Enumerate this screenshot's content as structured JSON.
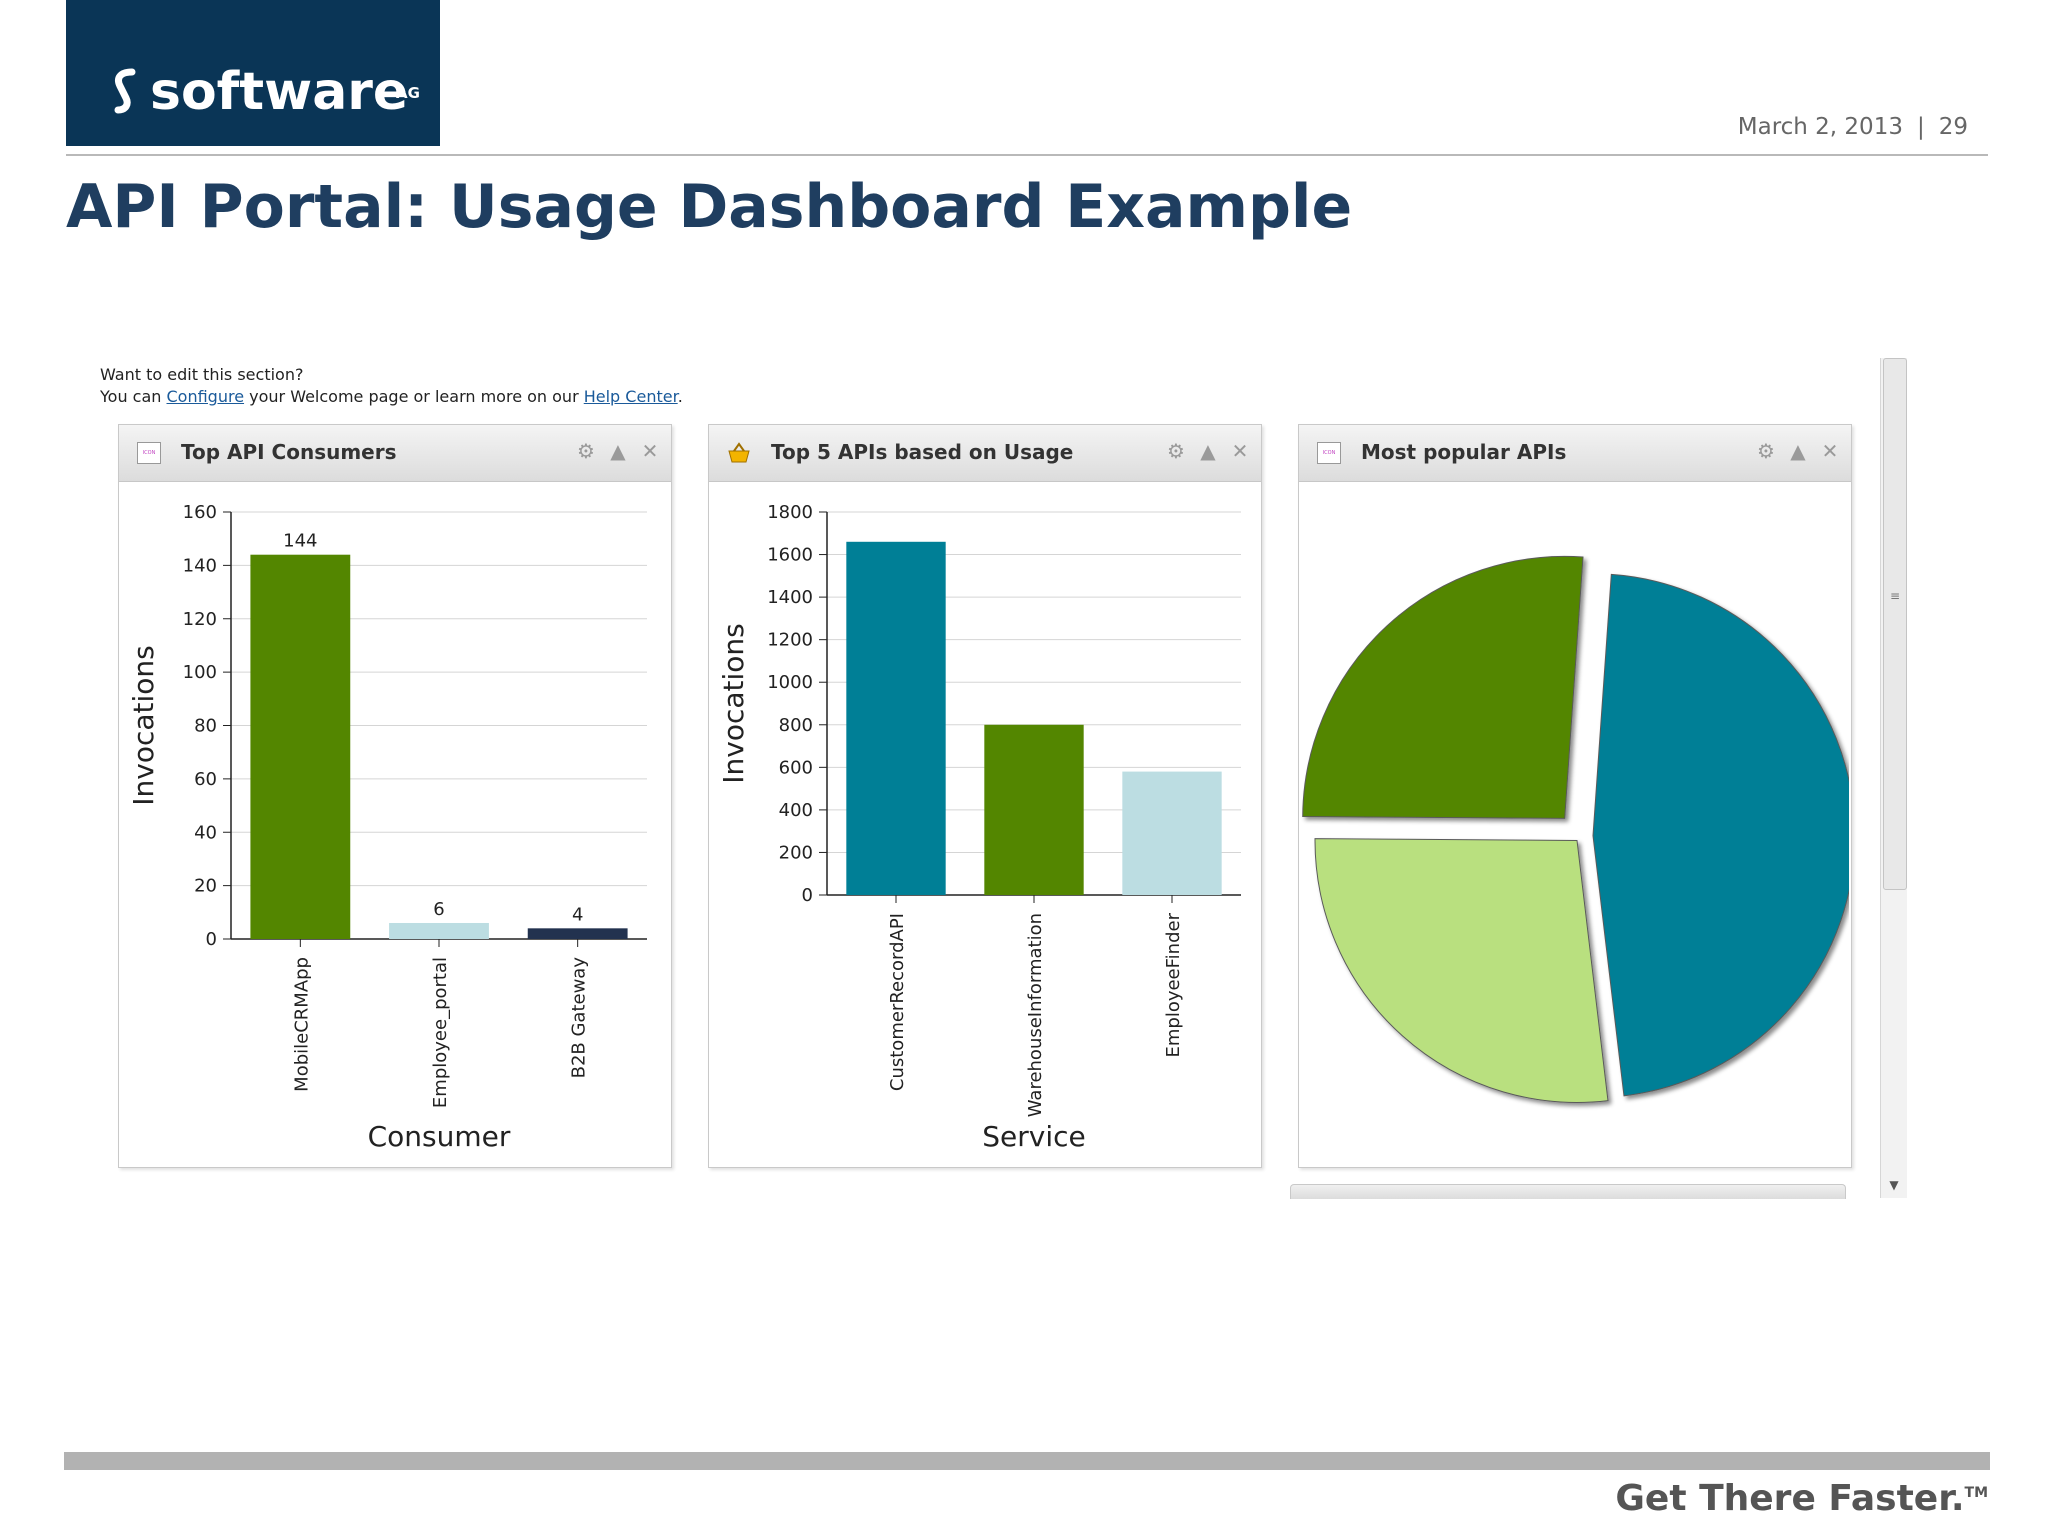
{
  "header": {
    "logo_text": "software",
    "logo_suffix": "AG",
    "date": "March 2, 2013",
    "separator": "|",
    "page_number": "29",
    "title": "API Portal: Usage Dashboard Example"
  },
  "intro": {
    "line1": "Want to edit this section?",
    "prefix": "You can ",
    "configure_link": "Configure",
    "middle": " your Welcome page or learn more on our ",
    "help_link": "Help Center",
    "suffix": "."
  },
  "panels": [
    {
      "title": "Top API Consumers",
      "icon": "portlet-icon",
      "tools": [
        "gear-icon",
        "collapse-icon",
        "close-icon"
      ]
    },
    {
      "title": "Top 5 APIs based on Usage",
      "icon": "basket-icon",
      "tools": [
        "gear-icon",
        "collapse-icon",
        "close-icon"
      ]
    },
    {
      "title": "Most popular APIs",
      "icon": "portlet-icon",
      "tools": [
        "gear-icon",
        "collapse-icon",
        "close-icon"
      ]
    }
  ],
  "footer": {
    "tagline": "Get There Faster.",
    "tm": "TM"
  },
  "colors": {
    "navy": "#0a3556",
    "title": "#1f3e60",
    "green": "#538600",
    "teal": "#007f96",
    "lightblue": "#bcdde2",
    "lightgreen": "#b9e07f",
    "darknavy": "#22324f"
  },
  "chart_data": [
    {
      "type": "bar",
      "title": "Top API Consumers",
      "xlabel": "Consumer",
      "ylabel": "Invocations",
      "categories": [
        "MobileCRMApp",
        "Employee_portal",
        "B2B Gateway"
      ],
      "values": [
        144,
        6,
        4
      ],
      "data_labels": [
        "144",
        "6",
        "4"
      ],
      "bar_colors": [
        "#538600",
        "#bcdde2",
        "#22324f"
      ],
      "ylim": [
        0,
        160
      ],
      "yticks": [
        0,
        20,
        40,
        60,
        80,
        100,
        120,
        140,
        160
      ],
      "grid": true
    },
    {
      "type": "bar",
      "title": "Top 5 APIs based on Usage",
      "xlabel": "Service",
      "ylabel": "Invocations",
      "categories": [
        "CustomerRecordAPI",
        "WarehouseInformation",
        "EmployeeFinder"
      ],
      "values": [
        1660,
        800,
        580
      ],
      "bar_colors": [
        "#007f96",
        "#538600",
        "#bcdde2"
      ],
      "ylim": [
        0,
        1800
      ],
      "yticks": [
        0,
        200,
        400,
        600,
        800,
        1000,
        1200,
        1400,
        1600,
        1800
      ],
      "grid": true
    },
    {
      "type": "pie",
      "title": "Most popular APIs",
      "values": [
        47,
        27,
        26
      ],
      "colors": [
        "#007f96",
        "#b9e07f",
        "#538600"
      ],
      "exploded": true
    }
  ]
}
